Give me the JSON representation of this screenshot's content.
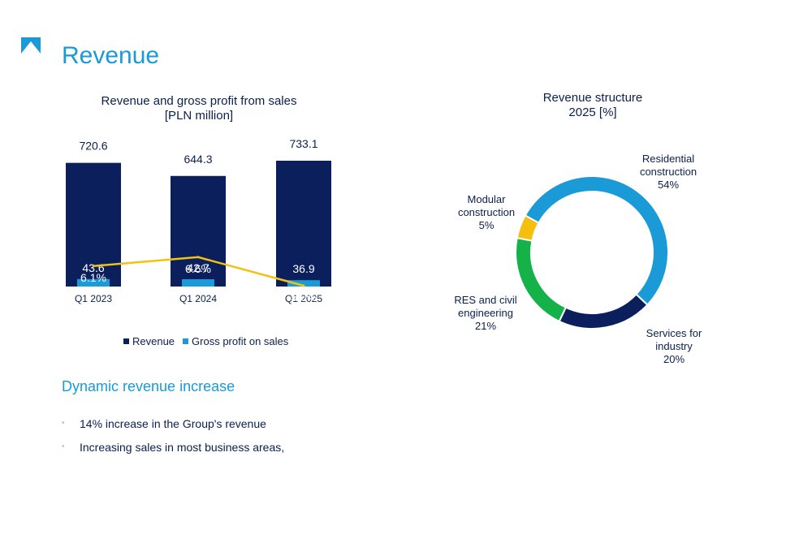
{
  "page": {
    "title": "Revenue",
    "subheading": "Dynamic revenue increase",
    "bullets": [
      "14% increase in the Group's revenue",
      "Increasing sales in most business areas,"
    ]
  },
  "colors": {
    "brand": "#1a9ad6",
    "navy": "#0b1f5c",
    "light_blue": "#1a9ad6",
    "line": "#f2c114",
    "green": "#15b24a",
    "yellow": "#f5bf10"
  },
  "icons": {
    "logo": "brand-logo-icon"
  },
  "chart_data": [
    {
      "type": "bar",
      "title": "Revenue and gross profit from sales",
      "subtitle": "[PLN million]",
      "categories": [
        "Q1 2023",
        "Q1 2024",
        "Q1 2025"
      ],
      "series": [
        {
          "name": "Revenue",
          "values": [
            720.6,
            644.3,
            733.1
          ],
          "labels": [
            "720.6",
            "644.3",
            "733.1"
          ]
        },
        {
          "name": "Gross profit on sales",
          "values": [
            43.6,
            42.7,
            36.9
          ],
          "labels": [
            "43.6",
            "42.7",
            "36.9"
          ]
        }
      ],
      "margin_line": {
        "values": [
          6.1,
          6.6,
          5.0
        ],
        "labels": [
          "6.1%",
          "6.6%",
          "5.0%"
        ]
      },
      "legend": [
        "Revenue",
        "Gross profit on sales"
      ],
      "legend_position": "bottom"
    },
    {
      "type": "pie",
      "title": "Revenue structure",
      "subtitle": "2025  [%]",
      "slices": [
        {
          "label": "Residential construction",
          "lines": [
            "Residential",
            "construction",
            "54%"
          ],
          "value": 54,
          "color": "#1a9ad6"
        },
        {
          "label": "Services for industry",
          "lines": [
            "Services for",
            "industry",
            "20%"
          ],
          "value": 20,
          "color": "#0b1f5c"
        },
        {
          "label": "RES and civil engineering",
          "lines": [
            "RES and civil",
            "engineering",
            "21%"
          ],
          "value": 21,
          "color": "#15b24a"
        },
        {
          "label": "Modular construction",
          "lines": [
            "Modular",
            "construction",
            "5%"
          ],
          "value": 5,
          "color": "#f5bf10"
        }
      ]
    }
  ]
}
